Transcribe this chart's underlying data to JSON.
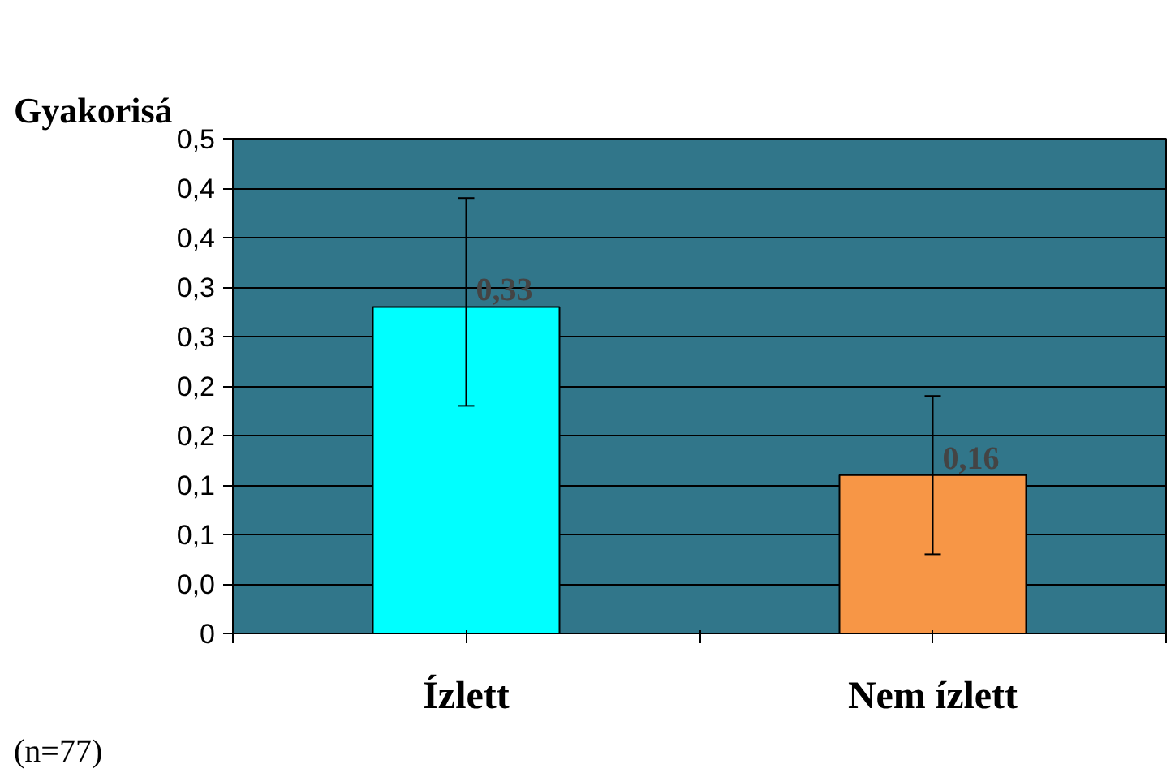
{
  "chart_data": {
    "type": "bar",
    "title": "Gyakorisá",
    "categories": [
      "Ízlett",
      "Nem ízlett"
    ],
    "values": [
      0.33,
      0.16
    ],
    "colors": [
      "#00ffff",
      "#f79646"
    ],
    "errors": [
      [
        0.23,
        0.44
      ],
      [
        0.08,
        0.24
      ]
    ],
    "value_labels": [
      "0,33",
      "0,16"
    ],
    "ylim": [
      0,
      0.5
    ],
    "yticks": [
      {
        "value": 0,
        "label": "0"
      },
      {
        "value": 0.05,
        "label": "0,0"
      },
      {
        "value": 0.1,
        "label": "0,1"
      },
      {
        "value": 0.15,
        "label": "0,1"
      },
      {
        "value": 0.2,
        "label": "0,2"
      },
      {
        "value": 0.25,
        "label": "0,2"
      },
      {
        "value": 0.3,
        "label": "0,3"
      },
      {
        "value": 0.35,
        "label": "0,3"
      },
      {
        "value": 0.4,
        "label": "0,4"
      },
      {
        "value": 0.45,
        "label": "0,4"
      },
      {
        "value": 0.5,
        "label": "0,5"
      }
    ],
    "grid": "y",
    "legend": false,
    "annotations": [
      "(n=77)"
    ]
  }
}
